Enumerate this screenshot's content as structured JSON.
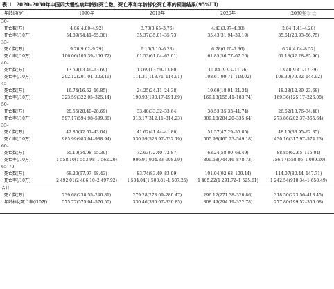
{
  "caption": {
    "label": "表 1",
    "title": "2020–2030年中国四大慢性病年龄别死亡数、死亡率和年龄标化死亡率的预测结果(95%UI)"
  },
  "watermark": "中华医学会",
  "headers": [
    "年龄组(岁)",
    "1990年",
    "2015年",
    "2020年",
    "2030年"
  ],
  "groups": [
    {
      "age": "30–",
      "rows": [
        {
          "label": "死亡数(万)",
          "values": [
            "4.86(4.80–4.92)",
            "3.70(3.65–3.76)",
            "4.43(3.97–4.88)",
            "2.84(1.41–4.28)"
          ]
        },
        {
          "label": "死亡率(/10万)",
          "values": [
            "54.89(54.41–55.38)",
            "35.37(35.01–35.73)",
            "35.43(31.94–39.19)",
            "35.61(20.93–56.75)"
          ]
        }
      ]
    },
    {
      "age": "35–",
      "rows": [
        {
          "label": "死亡数(万)",
          "values": [
            "9.70(9.62–9.79)",
            "6.16(6.10–6.23)",
            "6.78(6.20–7.36)",
            "6.28(4.04–8.52)"
          ]
        },
        {
          "label": "死亡率(/10万)",
          "values": [
            "106.06(105.39–106.72)",
            "61.53(61.04–62.01)",
            "61.85(56.77–67.26)",
            "61.18(42.28–85.96)"
          ]
        }
      ]
    },
    {
      "age": "40–",
      "rows": [
        {
          "label": "死亡数(万)",
          "values": [
            "13.59(13.49–13.69)",
            "13.69(13.59–13.80)",
            "10.84 (9.93–11.76)",
            "13.40(9.41–17.39)"
          ]
        },
        {
          "label": "死亡率(/10万)",
          "values": [
            "202.12(201.04–203.19)",
            "114.31(113.71–114.91)",
            "108.61(99.71–118.02)",
            "108.39(79.82–144.92)"
          ]
        }
      ]
    },
    {
      "age": "45–",
      "rows": [
        {
          "label": "死亡数(万)",
          "values": [
            "16.74(16.62–16.85)",
            "24.25(24.11–24.38)",
            "19.69(18.04–21.34)",
            "18.28(12.89–23.68)"
          ]
        },
        {
          "label": "死亡率(/10万)",
          "values": [
            "323.59(322.05–325.14)",
            "190.93(190.17–191.69)",
            "169.13(155.41–183.74)",
            "169.36(125.17–226.08)"
          ]
        }
      ]
    },
    {
      "age": "50–",
      "rows": [
        {
          "label": "死亡数(万)",
          "values": [
            "28.55(28.40–28.69)",
            "33.48(33.32–33.64)",
            "38.53(35.33–41.74)",
            "26.62(18.76–34.48)"
          ]
        },
        {
          "label": "死亡率(/10万)",
          "values": [
            "597.17(594.98–599.36)",
            "313.17(312.11–314.23)",
            "309.18(284.20–335.64)",
            "273.86(202.37–365.64)"
          ]
        }
      ]
    },
    {
      "age": "55–",
      "rows": [
        {
          "label": "死亡数(万)",
          "values": [
            "42.85(42.67–43.04)",
            "41.62(41.44–41.80)",
            "51.57(47.29–55.85)",
            "48.15(33.95–62.35)"
          ]
        },
        {
          "label": "死亡率(/10万)",
          "values": [
            "985.99(983.04–988.94)",
            "530.59(528.97–532.19)",
            "505.98(465.23–549.18)",
            "430.16(317.97–574.23)"
          ]
        }
      ]
    },
    {
      "age": "60–",
      "rows": [
        {
          "label": "死亡数(万)",
          "values": [
            "55.19(54.98–55.39)",
            "72.63(72.40–72.87)",
            "63.24(58.00–68.49)",
            "88.85(62.65–115.04)"
          ]
        },
        {
          "label": "死亡率(/10万)",
          "values": [
            "1 558.10(1 553.98–1 562.20)",
            "906.91(904.83–908.99)",
            "809.58(744.46–878.73)",
            "756.17(558.86–1 009.20)"
          ]
        }
      ]
    },
    {
      "age": "65–70",
      "rows": [
        {
          "label": "死亡数(万)",
          "values": [
            "68.20(67.97–68.43)",
            "83.74(83.49–83.99)",
            "101.04(92.63–109.44)",
            "114.07(80.44–147.71)"
          ]
        },
        {
          "label": "死亡率(/10万)",
          "values": [
            "2 492.01(2 486.10–2 497.92)",
            "1 504.04(1 500.81–1 507.25)",
            "1 405.22(1 291.72–1 525.61)",
            "1 242.54(918.34–1 658.49)"
          ]
        }
      ]
    }
  ],
  "total": {
    "label": "合计",
    "rows": [
      {
        "label": "死亡数(万)",
        "values": [
          "239.68(238.55–240.81)",
          "279.28(278.09–280.47)",
          "296.12(271.38–320.86)",
          "318.50(223.56–413.45)"
        ]
      },
      {
        "label": "年龄标化死亡率(/10万)",
        "values": [
          "575.77(575.04–576.50)",
          "330.46(330.07–330.85)",
          "308.49(294.19–322.78)",
          "277.80(199.52–356.08)"
        ]
      }
    ]
  }
}
